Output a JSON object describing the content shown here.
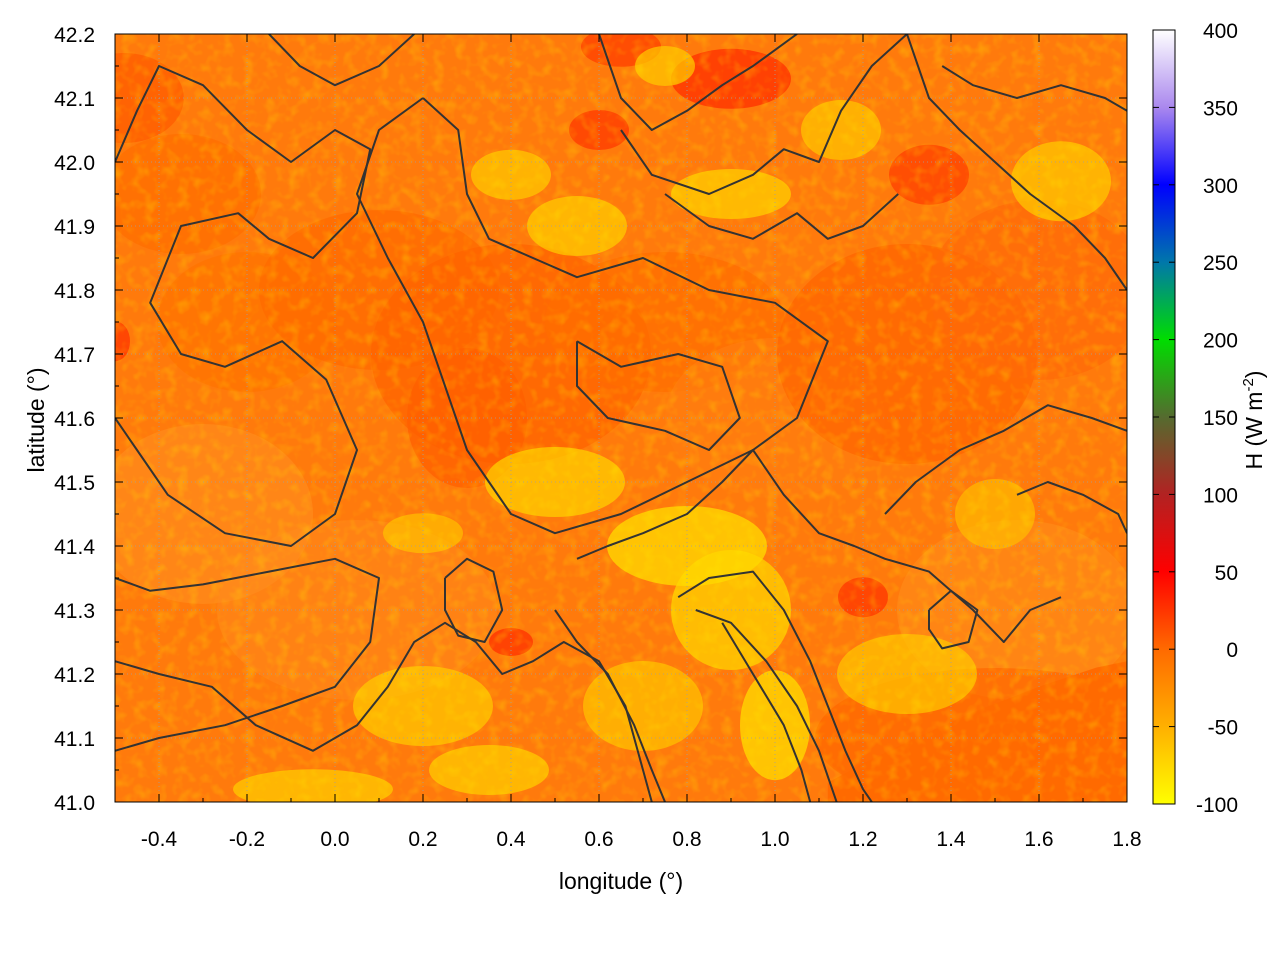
{
  "chart_data": {
    "type": "heatmap",
    "title": "",
    "xlabel": "longitude (°)",
    "ylabel": "latitude (°)",
    "colorbar_label": {
      "prefix": "H (W m",
      "superscript": "-2",
      "suffix": ")"
    },
    "xlim": [
      -0.5,
      1.8
    ],
    "ylim": [
      41.0,
      42.2
    ],
    "x_ticks": [
      "-0.4",
      "-0.2",
      "0.0",
      "0.2",
      "0.4",
      "0.6",
      "0.8",
      "1.0",
      "1.2",
      "1.4",
      "1.6",
      "1.8"
    ],
    "x_tick_values": [
      -0.4,
      -0.2,
      0.0,
      0.2,
      0.4,
      0.6,
      0.8,
      1.0,
      1.2,
      1.4,
      1.6,
      1.8
    ],
    "y_ticks": [
      "41.0",
      "41.1",
      "41.2",
      "41.3",
      "41.4",
      "41.5",
      "41.6",
      "41.7",
      "41.8",
      "41.9",
      "42.0",
      "42.1",
      "42.2"
    ],
    "y_tick_values": [
      41.0,
      41.1,
      41.2,
      41.3,
      41.4,
      41.5,
      41.6,
      41.7,
      41.8,
      41.9,
      42.0,
      42.1,
      42.2
    ],
    "colorbar_range": [
      -100,
      400
    ],
    "colorbar_ticks": [
      "400",
      "350",
      "300",
      "250",
      "200",
      "150",
      "100",
      "50",
      "0",
      "-50",
      "-100"
    ],
    "colorbar_tick_values": [
      400,
      350,
      300,
      250,
      200,
      150,
      100,
      50,
      0,
      -50,
      -100
    ],
    "colormap": [
      {
        "value": -100,
        "color": "#ffff00"
      },
      {
        "value": -50,
        "color": "#ffb000"
      },
      {
        "value": 0,
        "color": "#ff6a00"
      },
      {
        "value": 50,
        "color": "#ff0000"
      },
      {
        "value": 100,
        "color": "#b22222"
      },
      {
        "value": 150,
        "color": "#556b2f"
      },
      {
        "value": 200,
        "color": "#00dd00"
      },
      {
        "value": 250,
        "color": "#0077aa"
      },
      {
        "value": 300,
        "color": "#0000ff"
      },
      {
        "value": 350,
        "color": "#aa88ee"
      },
      {
        "value": 400,
        "color": "#ffffff"
      }
    ],
    "field_range_approx": [
      -100,
      50
    ],
    "grid": true,
    "grid_style": "dotted",
    "contour_color": "#333333",
    "contours": [
      [
        [
          -0.5,
          42.0
        ],
        [
          -0.45,
          42.08
        ],
        [
          -0.4,
          42.15
        ],
        [
          -0.3,
          42.12
        ],
        [
          -0.2,
          42.05
        ],
        [
          -0.1,
          42.0
        ],
        [
          0.0,
          42.05
        ],
        [
          0.08,
          42.02
        ],
        [
          0.05,
          41.92
        ],
        [
          -0.05,
          41.85
        ],
        [
          -0.15,
          41.88
        ],
        [
          -0.22,
          41.92
        ],
        [
          -0.35,
          41.9
        ],
        [
          -0.42,
          41.78
        ],
        [
          -0.35,
          41.7
        ],
        [
          -0.25,
          41.68
        ],
        [
          -0.12,
          41.72
        ],
        [
          -0.02,
          41.66
        ],
        [
          0.05,
          41.55
        ],
        [
          0.0,
          41.45
        ],
        [
          -0.1,
          41.4
        ],
        [
          -0.25,
          41.42
        ],
        [
          -0.38,
          41.48
        ],
        [
          -0.45,
          41.55
        ],
        [
          -0.5,
          41.6
        ]
      ],
      [
        [
          -0.5,
          41.35
        ],
        [
          -0.42,
          41.33
        ],
        [
          -0.3,
          41.34
        ],
        [
          -0.15,
          41.36
        ],
        [
          0.0,
          41.38
        ],
        [
          0.1,
          41.35
        ],
        [
          0.08,
          41.25
        ],
        [
          0.0,
          41.18
        ],
        [
          -0.12,
          41.15
        ],
        [
          -0.25,
          41.12
        ],
        [
          -0.4,
          41.1
        ],
        [
          -0.5,
          41.08
        ]
      ],
      [
        [
          0.2,
          42.1
        ],
        [
          0.28,
          42.05
        ],
        [
          0.3,
          41.95
        ],
        [
          0.35,
          41.88
        ],
        [
          0.45,
          41.85
        ],
        [
          0.55,
          41.82
        ],
        [
          0.7,
          41.85
        ],
        [
          0.85,
          41.8
        ],
        [
          1.0,
          41.78
        ],
        [
          1.12,
          41.72
        ],
        [
          1.05,
          41.6
        ],
        [
          0.95,
          41.55
        ],
        [
          0.8,
          41.5
        ],
        [
          0.65,
          41.45
        ],
        [
          0.5,
          41.42
        ],
        [
          0.4,
          41.45
        ],
        [
          0.3,
          41.55
        ],
        [
          0.25,
          41.65
        ],
        [
          0.2,
          41.75
        ],
        [
          0.12,
          41.85
        ],
        [
          0.05,
          41.95
        ],
        [
          0.1,
          42.05
        ],
        [
          0.2,
          42.1
        ]
      ],
      [
        [
          0.55,
          41.72
        ],
        [
          0.65,
          41.68
        ],
        [
          0.78,
          41.7
        ],
        [
          0.88,
          41.68
        ],
        [
          0.92,
          41.6
        ],
        [
          0.85,
          41.55
        ],
        [
          0.75,
          41.58
        ],
        [
          0.62,
          41.6
        ],
        [
          0.55,
          41.65
        ],
        [
          0.55,
          41.72
        ]
      ],
      [
        [
          0.6,
          42.2
        ],
        [
          0.65,
          42.1
        ],
        [
          0.72,
          42.05
        ],
        [
          0.8,
          42.08
        ],
        [
          0.88,
          42.12
        ],
        [
          0.95,
          42.15
        ],
        [
          1.05,
          42.2
        ]
      ],
      [
        [
          0.65,
          42.05
        ],
        [
          0.72,
          41.98
        ],
        [
          0.85,
          41.95
        ],
        [
          0.95,
          41.98
        ],
        [
          1.02,
          42.02
        ],
        [
          1.1,
          42.0
        ],
        [
          1.15,
          42.08
        ],
        [
          1.22,
          42.15
        ],
        [
          1.3,
          42.2
        ]
      ],
      [
        [
          0.75,
          41.95
        ],
        [
          0.85,
          41.9
        ],
        [
          0.95,
          41.88
        ],
        [
          1.05,
          41.92
        ],
        [
          1.12,
          41.88
        ],
        [
          1.2,
          41.9
        ],
        [
          1.28,
          41.95
        ]
      ],
      [
        [
          1.3,
          42.2
        ],
        [
          1.35,
          42.1
        ],
        [
          1.42,
          42.05
        ],
        [
          1.5,
          42.0
        ],
        [
          1.58,
          41.95
        ],
        [
          1.68,
          41.9
        ],
        [
          1.75,
          41.85
        ],
        [
          1.8,
          41.8
        ]
      ],
      [
        [
          1.38,
          42.15
        ],
        [
          1.45,
          42.12
        ],
        [
          1.55,
          42.1
        ],
        [
          1.65,
          42.12
        ],
        [
          1.75,
          42.1
        ],
        [
          1.8,
          42.08
        ]
      ],
      [
        [
          -0.5,
          41.22
        ],
        [
          -0.4,
          41.2
        ],
        [
          -0.28,
          41.18
        ],
        [
          -0.18,
          41.12
        ],
        [
          -0.05,
          41.08
        ],
        [
          0.05,
          41.12
        ],
        [
          0.12,
          41.18
        ],
        [
          0.18,
          41.25
        ],
        [
          0.25,
          41.28
        ],
        [
          0.32,
          41.25
        ],
        [
          0.38,
          41.2
        ],
        [
          0.45,
          41.22
        ],
        [
          0.52,
          41.25
        ],
        [
          0.6,
          41.22
        ],
        [
          0.66,
          41.15
        ],
        [
          0.7,
          41.05
        ],
        [
          0.72,
          41.0
        ]
      ],
      [
        [
          0.55,
          41.38
        ],
        [
          0.62,
          41.4
        ],
        [
          0.7,
          41.42
        ],
        [
          0.8,
          41.45
        ],
        [
          0.88,
          41.5
        ],
        [
          0.95,
          41.55
        ],
        [
          1.02,
          41.48
        ],
        [
          1.1,
          41.42
        ],
        [
          1.18,
          41.4
        ],
        [
          1.25,
          41.38
        ],
        [
          1.35,
          41.36
        ],
        [
          1.45,
          41.3
        ],
        [
          1.52,
          41.25
        ],
        [
          1.58,
          41.3
        ],
        [
          1.65,
          41.32
        ]
      ],
      [
        [
          0.5,
          41.3
        ],
        [
          0.55,
          41.25
        ],
        [
          0.62,
          41.2
        ],
        [
          0.68,
          41.12
        ],
        [
          0.72,
          41.05
        ],
        [
          0.75,
          41.0
        ]
      ],
      [
        [
          0.78,
          41.32
        ],
        [
          0.85,
          41.35
        ],
        [
          0.95,
          41.36
        ],
        [
          1.02,
          41.3
        ],
        [
          1.08,
          41.22
        ],
        [
          1.12,
          41.15
        ],
        [
          1.16,
          41.08
        ],
        [
          1.2,
          41.02
        ],
        [
          1.22,
          41.0
        ]
      ],
      [
        [
          0.82,
          41.3
        ],
        [
          0.9,
          41.28
        ],
        [
          0.98,
          41.22
        ],
        [
          1.05,
          41.15
        ],
        [
          1.1,
          41.08
        ],
        [
          1.14,
          41.0
        ]
      ],
      [
        [
          0.88,
          41.28
        ],
        [
          0.95,
          41.2
        ],
        [
          1.02,
          41.12
        ],
        [
          1.06,
          41.05
        ],
        [
          1.08,
          41.0
        ]
      ],
      [
        [
          1.25,
          41.45
        ],
        [
          1.32,
          41.5
        ],
        [
          1.42,
          41.55
        ],
        [
          1.52,
          41.58
        ],
        [
          1.62,
          41.62
        ],
        [
          1.72,
          41.6
        ],
        [
          1.8,
          41.58
        ]
      ],
      [
        [
          1.55,
          41.48
        ],
        [
          1.62,
          41.5
        ],
        [
          1.7,
          41.48
        ],
        [
          1.78,
          41.45
        ],
        [
          1.8,
          41.42
        ]
      ],
      [
        [
          -0.15,
          42.2
        ],
        [
          -0.08,
          42.15
        ],
        [
          0.0,
          42.12
        ],
        [
          0.1,
          42.15
        ],
        [
          0.18,
          42.2
        ]
      ],
      [
        [
          0.25,
          41.35
        ],
        [
          0.3,
          41.38
        ],
        [
          0.36,
          41.36
        ],
        [
          0.38,
          41.3
        ],
        [
          0.34,
          41.25
        ],
        [
          0.28,
          41.26
        ],
        [
          0.25,
          41.3
        ],
        [
          0.25,
          41.35
        ]
      ],
      [
        [
          1.35,
          41.3
        ],
        [
          1.4,
          41.33
        ],
        [
          1.46,
          41.3
        ],
        [
          1.44,
          41.25
        ],
        [
          1.38,
          41.24
        ],
        [
          1.35,
          41.27
        ],
        [
          1.35,
          41.3
        ]
      ]
    ]
  }
}
